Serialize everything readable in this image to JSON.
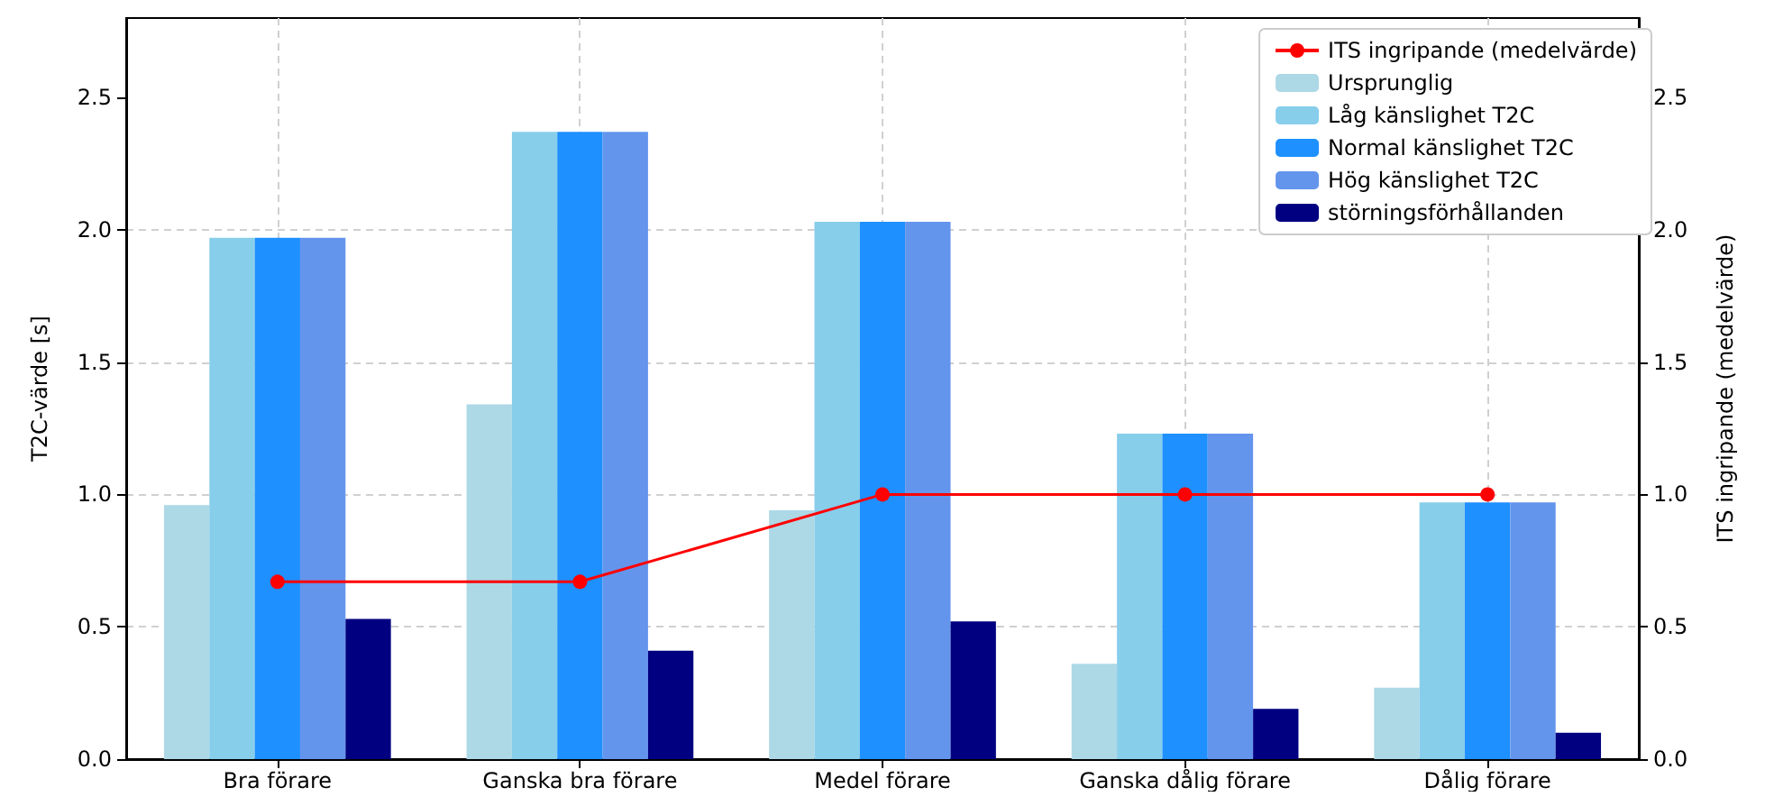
{
  "chart_data": {
    "type": "bar",
    "ylabel": "T2C-värde [s]",
    "y2label": "ITS ingripande (medelvärde)",
    "categories": [
      "Bra förare",
      "Ganska bra förare",
      "Medel förare",
      "Ganska dålig förare",
      "Dålig förare"
    ],
    "series": [
      {
        "name": "ITS ingripande (medelvärde)",
        "type": "line",
        "axis": "y2",
        "color": "#ff0000",
        "marker": "circle",
        "values": [
          0.67,
          0.67,
          1.0,
          1.0,
          1.0
        ]
      },
      {
        "name": "Ursprunglig",
        "color": "#add8e6",
        "values": [
          0.96,
          1.34,
          0.94,
          0.36,
          0.27
        ]
      },
      {
        "name": "Låg känslighet T2C",
        "color": "#87ceeb",
        "values": [
          1.97,
          2.37,
          2.03,
          1.23,
          0.97
        ]
      },
      {
        "name": "Normal känslighet T2C",
        "color": "#1e90ff",
        "values": [
          1.97,
          2.37,
          2.03,
          1.23,
          0.97
        ]
      },
      {
        "name": "Hög känslighet T2C",
        "color": "#6495ed",
        "values": [
          1.97,
          2.37,
          2.03,
          1.23,
          0.97
        ]
      },
      {
        "name": "störningsförhållanden",
        "color": "#000080",
        "values": [
          0.53,
          0.41,
          0.52,
          0.19,
          0.1
        ]
      }
    ],
    "ylim": [
      0,
      2.8
    ],
    "yticks": [
      {
        "value": 0,
        "label": "0.0"
      },
      0.5,
      {
        "value": 1,
        "label": "1.0"
      },
      1.5,
      {
        "value": 2,
        "label": "2.0"
      },
      2.5
    ],
    "y2lim": [
      0,
      2.8
    ],
    "y2ticks": [
      {
        "value": 0,
        "label": "0.0"
      },
      0.5,
      {
        "value": 1,
        "label": "1.0"
      },
      1.5,
      {
        "value": 2,
        "label": "2.0"
      },
      2.5
    ],
    "grid": true,
    "legend": "top right"
  }
}
